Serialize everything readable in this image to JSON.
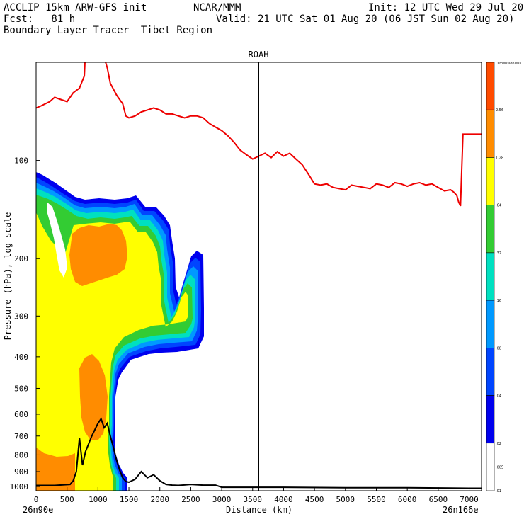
{
  "header": {
    "line1_left": "ACCLIP 15km ARW-GFS init",
    "line1_center": "NCAR/MMM",
    "line1_right": "Init: 12 UTC Wed 29 Jul 20",
    "line2_left": "Fcst:   81 h",
    "line2_right": "Valid: 21 UTC Sat 01 Aug 20 (06 JST Sun 02 Aug 20)",
    "line3_left": "Boundary Layer Tracer  Tibet Region"
  },
  "chart_data": {
    "type": "cross-section",
    "title": "ROAH",
    "xlabel": "Distance (km)",
    "ylabel": "Pressure (hPa), log scale",
    "x_start_label": "26n90e",
    "x_end_label": "26n166e",
    "xlim": [
      0,
      7200
    ],
    "ylim": [
      1030,
      50
    ],
    "y_scale": "log",
    "x_ticks": [
      0,
      500,
      1000,
      1500,
      2000,
      2500,
      3000,
      3500,
      4000,
      4500,
      5000,
      5500,
      6000,
      6500,
      7000
    ],
    "y_ticks": [
      100,
      200,
      300,
      400,
      500,
      600,
      700,
      800,
      900,
      1000
    ],
    "vertical_marker_x": 3600,
    "colorbar": {
      "levels": [
        "Dimensionless",
        "2.56",
        "1.28",
        ".64",
        ".32",
        ".16",
        ".08",
        ".04",
        ".02",
        ".01",
        ".005"
      ],
      "colors": [
        "#ff4b00",
        "#ff8c00",
        "#ffff00",
        "#33cc33",
        "#00e0c0",
        "#0099ff",
        "#0044ff",
        "#0000ee",
        "#ffffff"
      ]
    },
    "tropopause_line": {
      "color": "#ee0000",
      "x": [
        0,
        80,
        150,
        220,
        300,
        400,
        500,
        600,
        700,
        780,
        800,
        1050,
        1150,
        1200,
        1300,
        1400,
        1450,
        1500,
        1600,
        1700,
        1800,
        1900,
        2000,
        2100,
        2200,
        2300,
        2400,
        2500,
        2600,
        2700,
        2800,
        2900,
        3000,
        3100,
        3200,
        3300,
        3400,
        3500,
        3600,
        3700,
        3800,
        3900,
        4000,
        4100,
        4200,
        4300,
        4400,
        4500,
        4600,
        4700,
        4800,
        4900,
        5000,
        5100,
        5200,
        5300,
        5400,
        5500,
        5600,
        5700,
        5800,
        5900,
        6000,
        6100,
        6200,
        6300,
        6400,
        6500,
        6600,
        6700,
        6750,
        6800,
        6830,
        6860,
        6900,
        7000,
        7100,
        7200
      ],
      "y": [
        69,
        68,
        67,
        66,
        64,
        65,
        66,
        62,
        60,
        55,
        45,
        45,
        52,
        58,
        63,
        67,
        73,
        74,
        73,
        71,
        70,
        69,
        70,
        72,
        72,
        73,
        74,
        73,
        73,
        74,
        77,
        79,
        81,
        84,
        88,
        93,
        96,
        99,
        97,
        95,
        98,
        94,
        97,
        95,
        99,
        103,
        110,
        118,
        119,
        118,
        121,
        122,
        123,
        119,
        120,
        121,
        122,
        118,
        119,
        121,
        117,
        118,
        120,
        118,
        117,
        119,
        118,
        121,
        124,
        123,
        125,
        128,
        134,
        138,
        83,
        83,
        83,
        83
      ]
    },
    "terrain_line": {
      "color": "#000000",
      "x": [
        0,
        300,
        550,
        600,
        650,
        700,
        750,
        800,
        900,
        1000,
        1050,
        1100,
        1150,
        1200,
        1250,
        1300,
        1350,
        1400,
        1450,
        1500,
        1600,
        1700,
        1800,
        1900,
        2000,
        2100,
        2200,
        2300,
        2500,
        2700,
        2900,
        3000,
        3500,
        4000,
        5000,
        6000,
        7000,
        7200
      ],
      "y": [
        992,
        992,
        985,
        960,
        900,
        710,
        860,
        780,
        700,
        640,
        620,
        660,
        640,
        700,
        760,
        830,
        890,
        940,
        965,
        970,
        950,
        900,
        940,
        920,
        960,
        985,
        990,
        992,
        985,
        990,
        990,
        1005,
        1005,
        1005,
        1008,
        1008,
        1012,
        1012
      ]
    }
  }
}
